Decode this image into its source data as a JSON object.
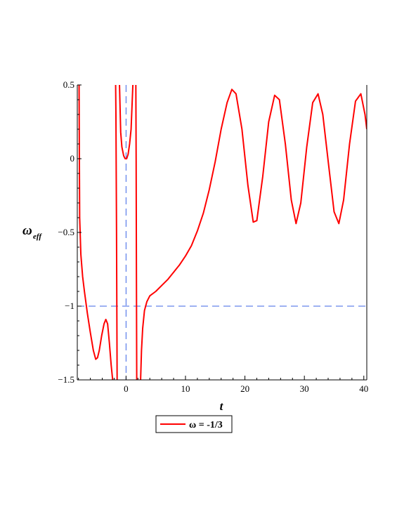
{
  "chart_data": {
    "type": "line",
    "title": "",
    "xlabel": "t",
    "ylabel_main": "ω",
    "ylabel_sub": "eff",
    "xlim": [
      -8.2,
      40.5
    ],
    "ylim": [
      -1.5,
      0.5
    ],
    "x_ticks": [
      0,
      10,
      20,
      30,
      40
    ],
    "x_tick_labels": [
      "0",
      "10",
      "20",
      "30",
      "40"
    ],
    "y_ticks": [
      0.5,
      0,
      -0.5,
      -1,
      -1.5
    ],
    "y_tick_labels": [
      "0.5",
      "0",
      "−0.5",
      "−1",
      "−1.5"
    ],
    "grid": false,
    "legend_position": "bottom-left",
    "legend": [
      {
        "label": "ω = -1/3",
        "color": "#ff0000"
      }
    ],
    "series": [
      {
        "name": "ω = -1/3",
        "color": "#ff0000",
        "segments": [
          [
            [
              -7.9,
              0.5
            ],
            [
              -7.85,
              0.0
            ],
            [
              -7.8,
              -0.4
            ],
            [
              -7.6,
              -0.65
            ],
            [
              -7.3,
              -0.8
            ],
            [
              -7.0,
              -0.9
            ],
            [
              -6.5,
              -1.05
            ],
            [
              -6.0,
              -1.18
            ],
            [
              -5.5,
              -1.3
            ],
            [
              -5.1,
              -1.36
            ],
            [
              -4.8,
              -1.35
            ],
            [
              -4.5,
              -1.3
            ],
            [
              -4.1,
              -1.2
            ],
            [
              -3.7,
              -1.12
            ],
            [
              -3.4,
              -1.09
            ],
            [
              -3.1,
              -1.12
            ],
            [
              -2.8,
              -1.25
            ],
            [
              -2.5,
              -1.4
            ],
            [
              -2.25,
              -1.5
            ]
          ],
          [
            [
              -1.75,
              0.5
            ],
            [
              -1.7,
              0.3
            ],
            [
              -1.6,
              -0.5
            ],
            [
              -1.55,
              -1.0
            ],
            [
              -1.5,
              -1.5
            ]
          ],
          [
            [
              -1.1,
              0.5
            ],
            [
              -0.9,
              0.18
            ],
            [
              -0.7,
              0.08
            ],
            [
              -0.4,
              0.02
            ],
            [
              -0.15,
              0.0
            ],
            [
              0.1,
              0.0
            ],
            [
              0.35,
              0.03
            ],
            [
              0.6,
              0.1
            ],
            [
              0.85,
              0.2
            ],
            [
              1.05,
              0.4
            ],
            [
              1.15,
              0.5
            ]
          ],
          [
            [
              1.65,
              0.5
            ],
            [
              1.7,
              0.0
            ],
            [
              1.75,
              -0.8
            ],
            [
              1.8,
              -1.5
            ]
          ],
          [
            [
              2.45,
              -1.5
            ],
            [
              2.6,
              -1.3
            ],
            [
              2.8,
              -1.15
            ],
            [
              3.1,
              -1.03
            ],
            [
              3.5,
              -0.97
            ],
            [
              4.0,
              -0.93
            ],
            [
              5.0,
              -0.9
            ],
            [
              6.0,
              -0.86
            ],
            [
              7.0,
              -0.82
            ],
            [
              8.0,
              -0.77
            ],
            [
              9.0,
              -0.72
            ],
            [
              10.0,
              -0.66
            ],
            [
              11.0,
              -0.59
            ],
            [
              12.0,
              -0.49
            ],
            [
              13.0,
              -0.37
            ],
            [
              14.0,
              -0.21
            ],
            [
              15.0,
              -0.02
            ],
            [
              16.0,
              0.2
            ],
            [
              17.0,
              0.38
            ],
            [
              17.8,
              0.47
            ],
            [
              18.5,
              0.44
            ],
            [
              19.5,
              0.2
            ],
            [
              20.5,
              -0.18
            ],
            [
              21.4,
              -0.43
            ],
            [
              22.0,
              -0.42
            ],
            [
              23.0,
              -0.12
            ],
            [
              24.0,
              0.25
            ],
            [
              25.0,
              0.43
            ],
            [
              25.8,
              0.4
            ],
            [
              26.8,
              0.1
            ],
            [
              27.8,
              -0.28
            ],
            [
              28.6,
              -0.44
            ],
            [
              29.4,
              -0.3
            ],
            [
              30.4,
              0.08
            ],
            [
              31.4,
              0.38
            ],
            [
              32.3,
              0.44
            ],
            [
              33.1,
              0.3
            ],
            [
              34.1,
              -0.05
            ],
            [
              35.0,
              -0.36
            ],
            [
              35.8,
              -0.44
            ],
            [
              36.6,
              -0.28
            ],
            [
              37.6,
              0.1
            ],
            [
              38.6,
              0.39
            ],
            [
              39.5,
              0.44
            ],
            [
              40.2,
              0.3
            ],
            [
              40.5,
              0.2
            ]
          ]
        ]
      }
    ],
    "reference_lines": [
      {
        "orientation": "horizontal",
        "value": -1,
        "color": "#3c64e6",
        "style": "dashed"
      },
      {
        "orientation": "vertical",
        "value": 0,
        "color": "#3c64e6",
        "style": "dashed"
      }
    ]
  }
}
